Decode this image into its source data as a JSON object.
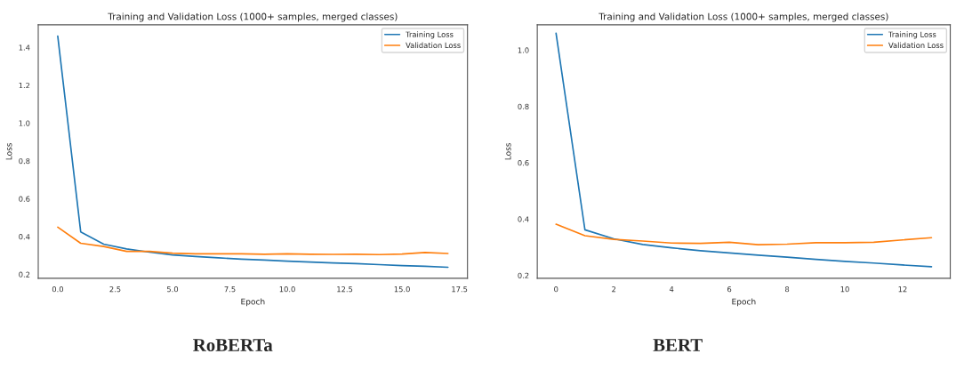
{
  "chart_data": [
    {
      "type": "line",
      "title": "Training and Validation Loss (1000+ samples, merged classes)",
      "xlabel": "Epoch",
      "ylabel": "Loss",
      "x": [
        0,
        1,
        2,
        3,
        4,
        5,
        6,
        7,
        8,
        9,
        10,
        11,
        12,
        13,
        14,
        15,
        16,
        17
      ],
      "series": [
        {
          "name": "Training Loss",
          "color": "#1f77b4",
          "values": [
            1.46,
            0.425,
            0.36,
            0.335,
            0.318,
            0.303,
            0.295,
            0.288,
            0.281,
            0.276,
            0.27,
            0.266,
            0.261,
            0.257,
            0.252,
            0.247,
            0.243,
            0.238
          ]
        },
        {
          "name": "Validation Loss",
          "color": "#ff7f0e",
          "values": [
            0.45,
            0.365,
            0.348,
            0.322,
            0.322,
            0.313,
            0.309,
            0.309,
            0.309,
            0.307,
            0.309,
            0.307,
            0.306,
            0.307,
            0.305,
            0.308,
            0.316,
            0.311
          ]
        }
      ],
      "xlim": [
        -0.85,
        17.85
      ],
      "xticks": [
        {
          "value": 0,
          "label": "0.0"
        },
        {
          "value": 2.5,
          "label": "2.5"
        },
        {
          "value": 5,
          "label": "5.0"
        },
        {
          "value": 7.5,
          "label": "7.5"
        },
        {
          "value": 10,
          "label": "10.0"
        },
        {
          "value": 12.5,
          "label": "12.5"
        },
        {
          "value": 15,
          "label": "15.0"
        },
        {
          "value": 17.5,
          "label": "17.5"
        }
      ],
      "ylim": [
        0.18,
        1.52
      ],
      "yticks": [
        0.2,
        0.4,
        0.6,
        0.8,
        {
          "value": 1,
          "label": "1.0"
        },
        1.2,
        1.4
      ],
      "legend": "top right",
      "grid": false,
      "annotations": [
        "RoBERTa"
      ]
    },
    {
      "type": "line",
      "title": "Training and Validation Loss (1000+ samples, merged classes)",
      "xlabel": "Epoch",
      "ylabel": "Loss",
      "x": [
        0,
        1,
        2,
        3,
        4,
        5,
        6,
        7,
        8,
        9,
        10,
        11,
        12,
        13
      ],
      "series": [
        {
          "name": "Training Loss",
          "color": "#1f77b4",
          "values": [
            1.06,
            0.362,
            0.33,
            0.31,
            0.298,
            0.288,
            0.28,
            0.272,
            0.265,
            0.257,
            0.25,
            0.244,
            0.237,
            0.231
          ]
        },
        {
          "name": "Validation Loss",
          "color": "#ff7f0e",
          "values": [
            0.382,
            0.341,
            0.328,
            0.322,
            0.315,
            0.314,
            0.318,
            0.309,
            0.311,
            0.316,
            0.316,
            0.318,
            0.326,
            0.334
          ]
        }
      ],
      "xlim": [
        -0.65,
        13.65
      ],
      "xticks": [
        0,
        2,
        4,
        6,
        8,
        10,
        12
      ],
      "ylim": [
        0.19,
        1.09
      ],
      "yticks": [
        0.2,
        0.4,
        0.6,
        0.8,
        {
          "value": 1,
          "label": "1.0"
        }
      ],
      "legend": "top right",
      "grid": false,
      "annotations": [
        "BERT"
      ]
    }
  ]
}
